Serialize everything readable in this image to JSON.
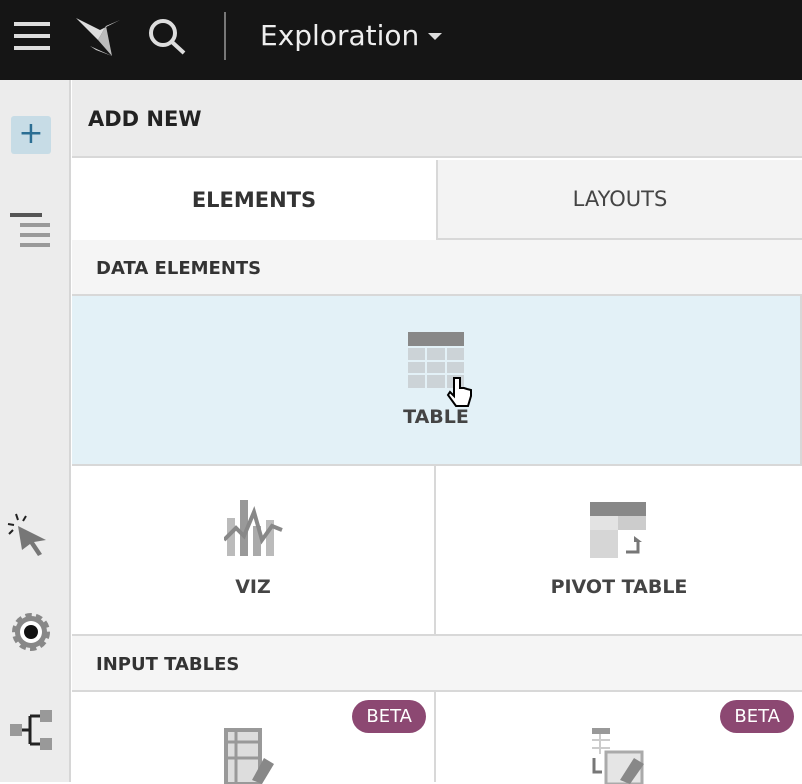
{
  "topbar": {
    "title": "Exploration",
    "icons": [
      "menu-icon",
      "logo-icon",
      "search-icon",
      "caret-down-icon"
    ]
  },
  "sidebar": {
    "icons": [
      "add-icon",
      "outline-icon",
      "interaction-icon",
      "settings-icon",
      "lineage-icon"
    ]
  },
  "panel": {
    "title": "ADD NEW",
    "tabs": [
      {
        "label": "ELEMENTS",
        "active": true
      },
      {
        "label": "LAYOUTS",
        "active": false
      }
    ],
    "sections": [
      {
        "title": "DATA ELEMENTS",
        "items": [
          {
            "label": "TABLE",
            "hovered": true
          },
          {
            "label": "VIZ"
          },
          {
            "label": "PIVOT TABLE"
          }
        ]
      },
      {
        "title": "INPUT TABLES",
        "items": [
          {
            "badge": "BETA"
          },
          {
            "badge": "BETA"
          }
        ]
      }
    ]
  },
  "colors": {
    "topbar": "#151515",
    "hover": "#e3f1f7",
    "beta": "#8c4872"
  }
}
